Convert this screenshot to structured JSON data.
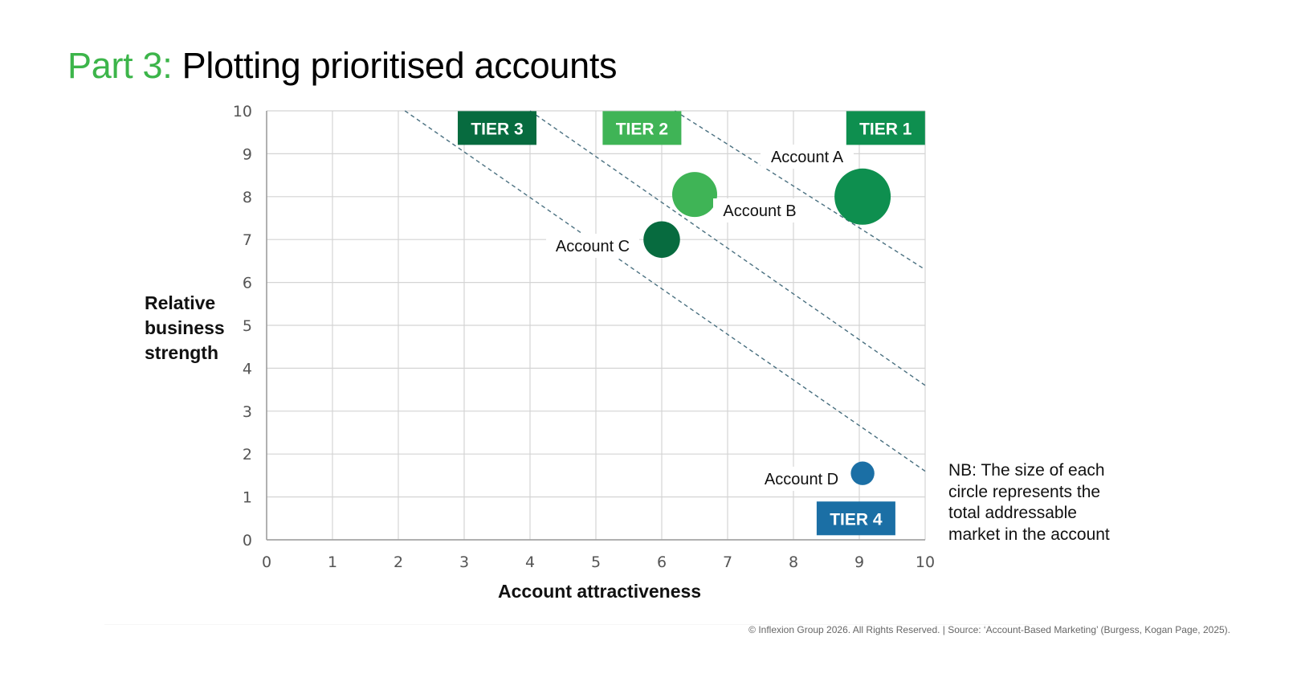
{
  "title": {
    "prefix": "Part 3:",
    "text": "Plotting prioritised accounts"
  },
  "note": {
    "lines": [
      "NB: The size of each",
      "circle represents the",
      "total addressable",
      "market in the account"
    ]
  },
  "footer": "© Inflexion Group 2026. All Rights Reserved. | Source: ‘Account-Based Marketing’ (Burgess, Kogan Page, 2025).",
  "colors": {
    "title_accent": "#3cb54a",
    "tier1": "#0e8f4f",
    "tier2": "#3fb456",
    "tier3": "#076b3f",
    "tier4": "#1b6fa5",
    "dashed_line": "#4a7080",
    "grid": "#d4d4d4"
  },
  "chart_data": {
    "type": "scatter",
    "subtype": "bubble",
    "title": "Plotting prioritised accounts",
    "xlabel": "Account attractiveness",
    "ylabel": "Relative business strength",
    "xlim": [
      0,
      10
    ],
    "ylim": [
      0,
      10
    ],
    "grid": true,
    "x_ticks": [
      "0",
      "1",
      "2",
      "3",
      "4",
      "5",
      "6",
      "7",
      "8",
      "9",
      "10"
    ],
    "y_ticks": [
      "0",
      "1",
      "2",
      "3",
      "4",
      "5",
      "6",
      "7",
      "8",
      "9",
      "10"
    ],
    "points": [
      {
        "label": "Account A",
        "x": 9.05,
        "y": 8.0,
        "size_relative": 1.0,
        "tier": "TIER 1",
        "color": "#0e8f4f"
      },
      {
        "label": "Account B",
        "x": 6.5,
        "y": 8.05,
        "size_relative": 0.8,
        "tier": "TIER 2",
        "color": "#3fb456"
      },
      {
        "label": "Account C",
        "x": 6.0,
        "y": 7.0,
        "size_relative": 0.65,
        "tier": "TIER 3",
        "color": "#076b3f"
      },
      {
        "label": "Account D",
        "x": 9.05,
        "y": 1.55,
        "size_relative": 0.42,
        "tier": "TIER 4",
        "color": "#1b6fa5"
      }
    ],
    "tier_boundaries": [
      {
        "from": [
          2.1,
          10
        ],
        "to": [
          10,
          1.6
        ],
        "style": "dashed"
      },
      {
        "from": [
          4.0,
          10
        ],
        "to": [
          10,
          3.6
        ],
        "style": "dashed"
      },
      {
        "from": [
          6.2,
          10
        ],
        "to": [
          10,
          6.3
        ],
        "style": "dashed"
      }
    ],
    "tier_labels": [
      {
        "text": "TIER 3",
        "x": 3.5,
        "y": 9.6,
        "color": "#076b3f"
      },
      {
        "text": "TIER 2",
        "x": 5.7,
        "y": 9.6,
        "color": "#3fb456"
      },
      {
        "text": "TIER 1",
        "x": 9.4,
        "y": 9.6,
        "color": "#0e8f4f"
      },
      {
        "text": "TIER 4",
        "x": 8.95,
        "y": 0.5,
        "color": "#1b6fa5"
      }
    ],
    "annotations": [
      "NB: The size of each circle represents the total addressable market in the account"
    ]
  }
}
